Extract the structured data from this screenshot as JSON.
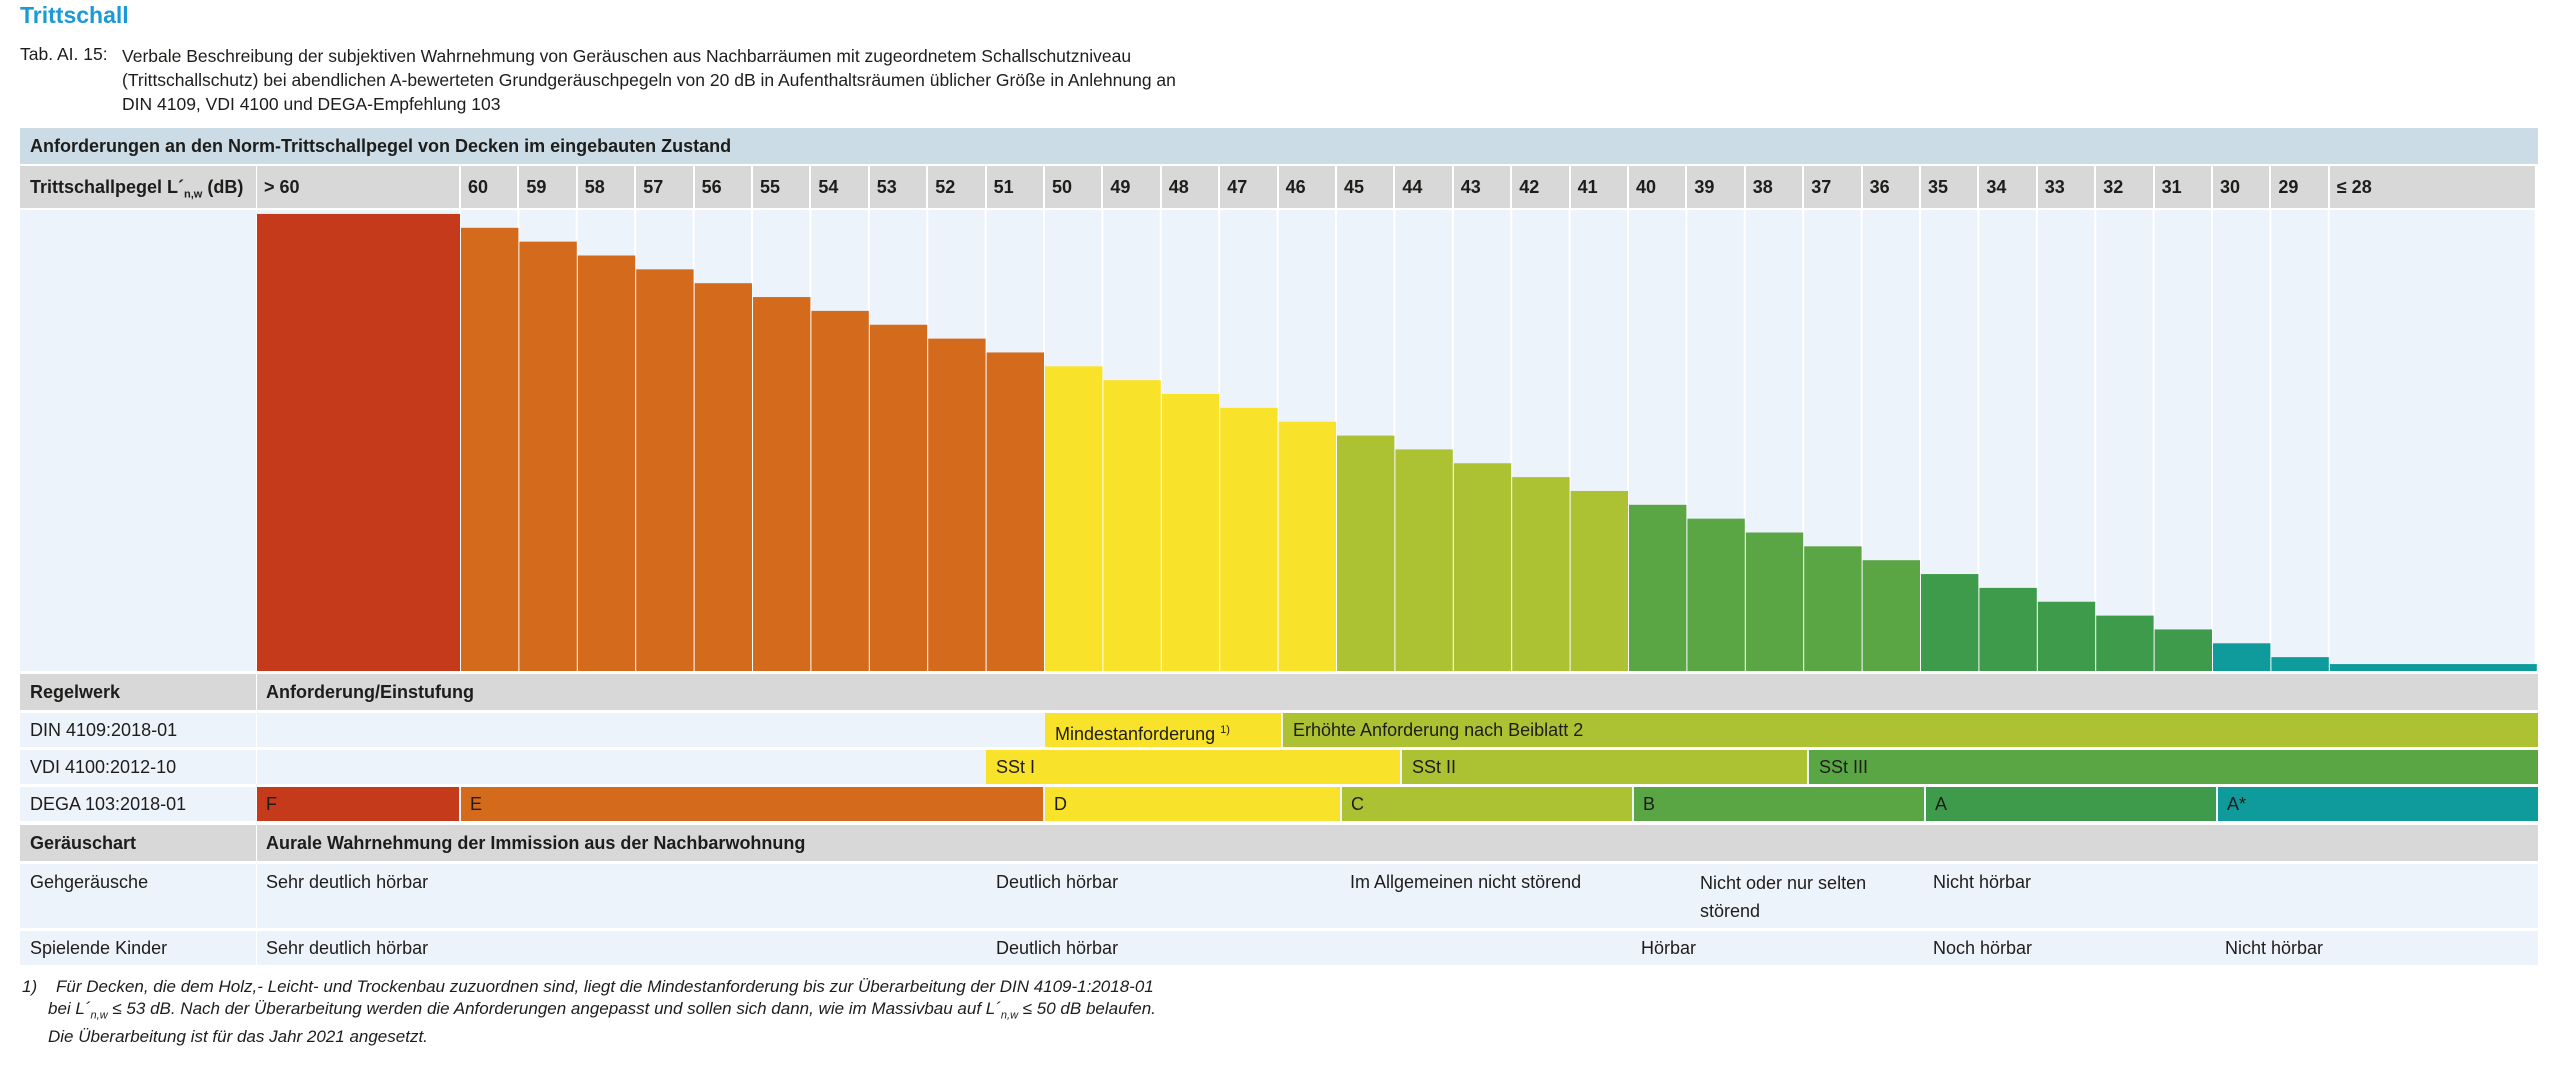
{
  "title": "Trittschall",
  "caption": {
    "label": "Tab. AI. 15:",
    "line1": "Verbale Beschreibung der subjektiven Wahrnehmung von Geräuschen aus Nachbarräumen mit zugeordnetem Schallschutzniveau",
    "line2": "(Trittschallschutz) bei abendlichen A-bewerteten Grundgeräuschpegeln von 20 dB in Aufenthaltsräumen üblicher Größe in Anlehnung an",
    "line3": "DIN 4109, VDI 4100 und DEGA-Empfehlung 103"
  },
  "section_header": "Anforderungen an den Norm-Trittschallpegel von Decken im eingebauten Zustand",
  "level_row": {
    "label_pre": "Trittschallpegel L´",
    "label_sub": "n,w",
    "label_post": " (dB)",
    "levels": [
      "> 60",
      "60",
      "59",
      "58",
      "57",
      "56",
      "55",
      "54",
      "53",
      "52",
      "51",
      "50",
      "49",
      "48",
      "47",
      "46",
      "45",
      "44",
      "43",
      "42",
      "41",
      "40",
      "39",
      "38",
      "37",
      "36",
      "35",
      "34",
      "33",
      "32",
      "31",
      "30",
      "29",
      "≤ 28"
    ]
  },
  "chart_data": {
    "type": "bar",
    "categories": [
      "> 60",
      "60",
      "59",
      "58",
      "57",
      "56",
      "55",
      "54",
      "53",
      "52",
      "51",
      "50",
      "49",
      "48",
      "47",
      "46",
      "45",
      "44",
      "43",
      "42",
      "41",
      "40",
      "39",
      "38",
      "37",
      "36",
      "35",
      "34",
      "33",
      "32",
      "31",
      "30",
      "29",
      "≤ 28"
    ],
    "values": [
      33,
      32,
      31,
      30,
      29,
      28,
      27,
      26,
      25,
      24,
      23,
      22,
      21,
      20,
      19,
      18,
      17,
      16,
      15,
      14,
      13,
      12,
      11,
      10,
      9,
      8,
      7,
      6,
      5,
      4,
      3,
      2,
      1,
      0.5
    ],
    "colors": [
      "#c43a1b",
      "#d46a1c",
      "#d46a1c",
      "#d46a1c",
      "#d46a1c",
      "#d46a1c",
      "#d46a1c",
      "#d46a1c",
      "#d46a1c",
      "#d46a1c",
      "#d46a1c",
      "#f9e22a",
      "#f9e22a",
      "#f9e22a",
      "#f9e22a",
      "#f9e22a",
      "#acc233",
      "#acc233",
      "#acc233",
      "#acc233",
      "#acc233",
      "#5ba644",
      "#5ba644",
      "#5ba644",
      "#5ba644",
      "#5ba644",
      "#3f9b4c",
      "#3f9b4c",
      "#3f9b4c",
      "#3f9b4c",
      "#3f9b4c",
      "#0f9a9b",
      "#0f9a9b",
      "#0f9a9b"
    ],
    "title": "",
    "xlabel": "",
    "ylabel": "",
    "grid": false
  },
  "regelwerk": {
    "header_left": "Regelwerk",
    "header_right": "Anforderung/Einstufung",
    "rows": [
      {
        "name": "DIN 4109:2018-01",
        "segments": [
          {
            "text": "Mindestanforderung",
            "sup": "1)",
            "color": "#f9e22a"
          },
          {
            "text": "Erhöhte Anforderung nach Beiblatt 2",
            "sup": "",
            "color": "#acc233"
          }
        ]
      },
      {
        "name": "VDI 4100:2012-10",
        "segments": [
          {
            "text": "SSt I",
            "sup": "",
            "color": "#f9e22a"
          },
          {
            "text": "SSt II",
            "sup": "",
            "color": "#acc233"
          },
          {
            "text": "SSt III",
            "sup": "",
            "color": "#5ba644"
          }
        ]
      },
      {
        "name": "DEGA 103:2018-01",
        "segments": [
          {
            "text": "F",
            "sup": "",
            "color": "#c43a1b"
          },
          {
            "text": "E",
            "sup": "",
            "color": "#d46a1c"
          },
          {
            "text": "D",
            "sup": "",
            "color": "#f9e22a"
          },
          {
            "text": "C",
            "sup": "",
            "color": "#acc233"
          },
          {
            "text": "B",
            "sup": "",
            "color": "#5ba644"
          },
          {
            "text": "A",
            "sup": "",
            "color": "#3f9b4c"
          },
          {
            "text": "A*",
            "sup": "",
            "color": "#0f9a9b"
          }
        ]
      }
    ]
  },
  "geraeusch": {
    "header_left": "Geräuschart",
    "header_right": "Aurale Wahrnehmung der Immission aus der Nachbarwohnung",
    "rows": [
      {
        "name": "Gehgeräusche",
        "cells": [
          "Sehr deutlich hörbar",
          "Deutlich hörbar",
          "Im Allgemeinen nicht störend",
          "Nicht oder nur selten",
          "störend",
          "Nicht hörbar"
        ]
      },
      {
        "name": "Spielende Kinder",
        "cells": [
          "Sehr deutlich hörbar",
          "Deutlich hörbar",
          "Hörbar",
          "Noch hörbar",
          "Nicht hörbar"
        ]
      }
    ]
  },
  "footnote": {
    "marker": "1)",
    "line1": "Für Decken, die dem Holz,- Leicht- und Trockenbau zuzuordnen sind, liegt die Mindestanforderung bis zur Überarbeitung der DIN 4109-1:2018-01",
    "line2_pre": "bei L´",
    "line2_sub": "n,w",
    "line2_mid": " ≤ 53 dB. Nach der Überarbeitung werden die Anforderungen angepasst und sollen sich dann, wie im Massivbau auf L´",
    "line2_sub2": "n,w",
    "line2_post": " ≤ 50 dB belaufen.",
    "line3": "Die Überarbeitung ist für das Jahr 2021 angesetzt."
  }
}
